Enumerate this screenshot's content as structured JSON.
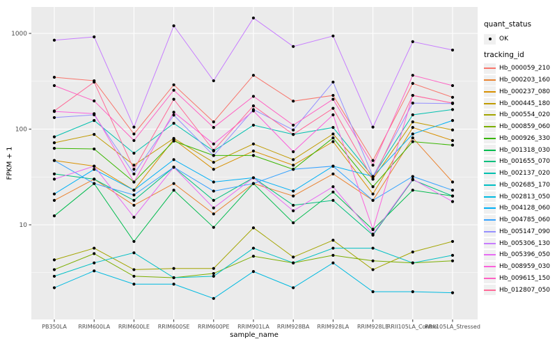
{
  "figure": {
    "ylabel": "FPKM + 1",
    "xlabel": "sample_name"
  },
  "legend": {
    "quant_status_title": "quant_status",
    "quant_status_item": "OK",
    "tracking_id_title": "tracking_id",
    "key_background": "#F0F0F0",
    "marker_color": "#000000"
  },
  "chart_data": {
    "type": "line",
    "title": "",
    "xlabel": "sample_name",
    "ylabel": "FPKM + 1",
    "y_scale": "log10",
    "y_ticks": [
      10,
      100,
      1000
    ],
    "y_minor_ticks": [
      3.162,
      31.62,
      316.2
    ],
    "ylim": [
      1.05,
      1900
    ],
    "grid": true,
    "legend_position": "right",
    "panel_background": "#EBEBEB",
    "grid_color": "#FFFFFF",
    "tick_label_color": "#4D4D4D",
    "point_color": "#000000",
    "x_categories": [
      "PB350LA",
      "RRIM600LA",
      "RRIM600LE",
      "RRIM600SE",
      "RRIM600PE",
      "RRIM901LA",
      "RRIM928BA",
      "RRIM928LA",
      "RRIM928LE",
      "RRII105LA_Control",
      "RRII105LA_Stressed"
    ],
    "series": [
      {
        "name": "Hb_000059_210",
        "color": "#F8766D",
        "values": [
          348,
          320,
          89,
          290,
          119,
          365,
          196,
          225,
          47,
          300,
          215
        ]
      },
      {
        "name": "Hb_000203_160",
        "color": "#EA8331",
        "values": [
          18,
          30,
          16,
          27,
          13,
          27,
          20,
          34,
          18,
          81,
          28
        ]
      },
      {
        "name": "Hb_000237_080",
        "color": "#D89000",
        "values": [
          47,
          41,
          23,
          78,
          38,
          59,
          42,
          74,
          21,
          104,
          76
        ]
      },
      {
        "name": "Hb_000445_180",
        "color": "#C09B00",
        "values": [
          72,
          88,
          42,
          80,
          45,
          70,
          48,
          89,
          30,
          119,
          98
        ]
      },
      {
        "name": "Hb_000554_020",
        "color": "#A3A500",
        "values": [
          4.3,
          5.7,
          3.4,
          3.5,
          3.5,
          9.3,
          4.6,
          6.9,
          3.4,
          5.2,
          6.7
        ]
      },
      {
        "name": "Hb_000859_060",
        "color": "#7CAE00",
        "values": [
          3.4,
          5.0,
          2.9,
          2.8,
          3.1,
          4.7,
          4.0,
          4.8,
          4.2,
          4.0,
          4.2
        ]
      },
      {
        "name": "Hb_000926_330",
        "color": "#39B600",
        "values": [
          63,
          62,
          28,
          75,
          53,
          53,
          38,
          81,
          25,
          74,
          68
        ]
      },
      {
        "name": "Hb_001318_030",
        "color": "#00BB4E",
        "values": [
          12.4,
          27,
          6.7,
          23,
          9.4,
          27,
          10.5,
          22,
          8.9,
          23,
          20
        ]
      },
      {
        "name": "Hb_001655_070",
        "color": "#00BF7D",
        "values": [
          34,
          30,
          18,
          40,
          18,
          31,
          16,
          18,
          7.8,
          29.5,
          20
        ]
      },
      {
        "name": "Hb_002137_020",
        "color": "#00C0AF",
        "values": [
          83,
          123,
          56,
          115,
          59,
          110,
          88,
          104,
          32,
          141,
          160
        ]
      },
      {
        "name": "Hb_002685_170",
        "color": "#00BFC4",
        "values": [
          2.9,
          4.0,
          5.1,
          2.8,
          2.9,
          5.7,
          4.0,
          5.7,
          5.7,
          4.0,
          4.8
        ]
      },
      {
        "name": "Hb_002813_050",
        "color": "#00BAE0",
        "values": [
          2.2,
          3.3,
          2.4,
          2.4,
          1.7,
          3.25,
          2.2,
          4.0,
          2.0,
          2.0,
          1.95
        ]
      },
      {
        "name": "Hb_004128_060",
        "color": "#00B0F6",
        "values": [
          21,
          38,
          23,
          48,
          28,
          31,
          22.5,
          41,
          32,
          89,
          123
        ]
      },
      {
        "name": "Hb_004785_060",
        "color": "#35A2FF",
        "values": [
          47,
          27,
          20.5,
          40,
          22.5,
          27,
          38,
          41,
          18,
          32,
          23
        ]
      },
      {
        "name": "Hb_005147_090",
        "color": "#9590FF",
        "values": [
          132,
          141,
          34,
          140,
          53,
          160,
          98,
          310,
          32,
          187,
          185
        ]
      },
      {
        "name": "Hb_005306_130",
        "color": "#C77CFF",
        "values": [
          850,
          920,
          105,
          1200,
          320,
          1450,
          730,
          940,
          105,
          820,
          670
        ]
      },
      {
        "name": "Hb_005396_050",
        "color": "#E76BF3",
        "values": [
          30,
          41,
          12,
          40,
          15,
          31,
          14,
          25,
          8,
          30,
          17.5
        ]
      },
      {
        "name": "Hb_008959_030",
        "color": "#FA62DB",
        "values": [
          153,
          145,
          28,
          150,
          70,
          155,
          58,
          141,
          9,
          225,
          187
        ]
      },
      {
        "name": "Hb_009615_150",
        "color": "#FF61C3",
        "values": [
          285,
          197,
          76,
          255,
          104,
          220,
          110,
          205,
          42,
          365,
          285
        ]
      },
      {
        "name": "Hb_012807_050",
        "color": "#FF6A98",
        "values": [
          155,
          310,
          38,
          205,
          60,
          175,
          88,
          165,
          30,
          225,
          187
        ]
      }
    ]
  }
}
